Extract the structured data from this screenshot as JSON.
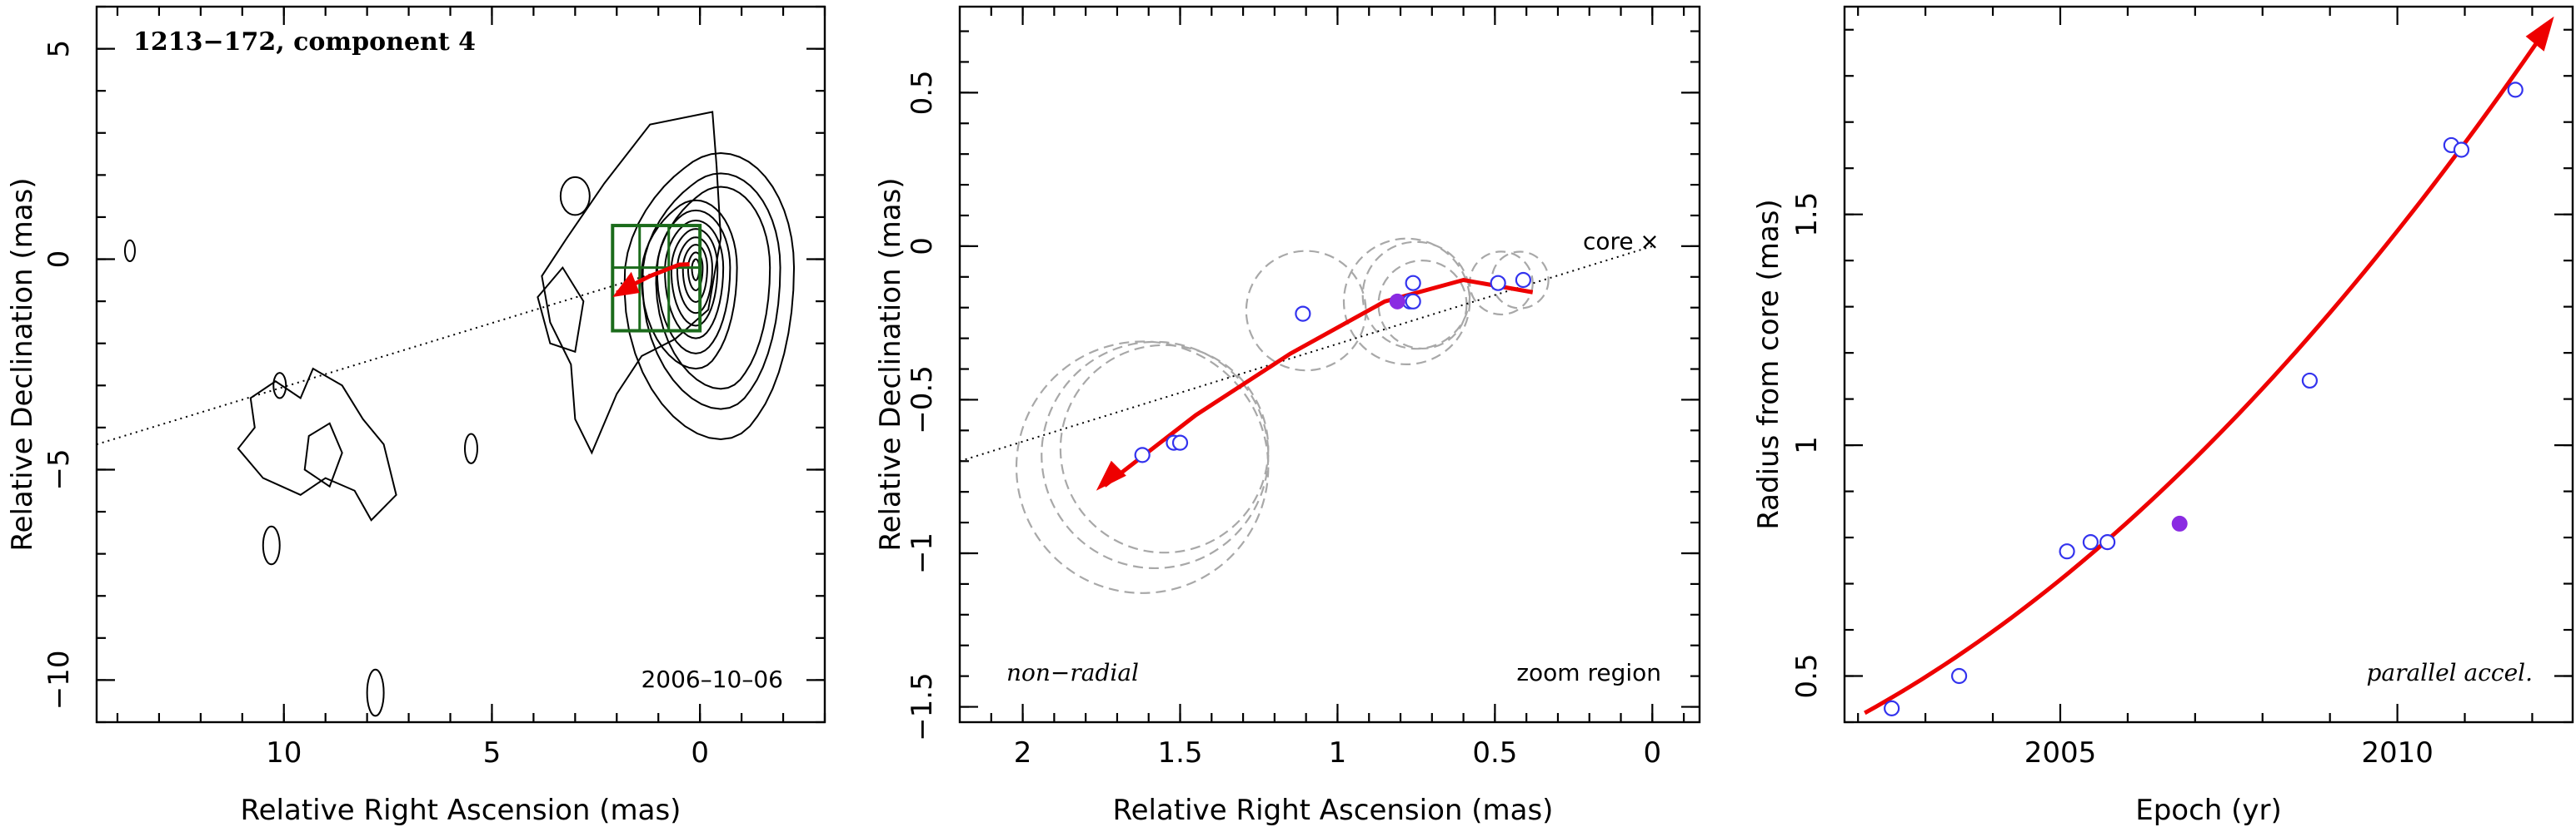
{
  "chart_data": [
    {
      "type": "contour",
      "title": "1213−172, component 4",
      "xlabel": "Relative Right Ascension (mas)",
      "ylabel": "Relative Declination (mas)",
      "xlim": [
        14.5,
        -3
      ],
      "ylim": [
        -11,
        6
      ],
      "xticks": [
        10,
        5,
        0
      ],
      "yticks": [
        5,
        0,
        -5,
        -10
      ],
      "annotation": "2006–10–06",
      "mean_direction_line": [
        [
          14.5,
          -4.4
        ],
        [
          0,
          0
        ]
      ],
      "zoom_box": {
        "ra": [
          2.1,
          0
        ],
        "dec": [
          -1.7,
          0.8
        ]
      },
      "motion_arrow": [
        [
          2,
          -0.8
        ],
        [
          1.2,
          -0.4
        ],
        [
          0.5,
          -0.13
        ],
        [
          0.25,
          -0.12
        ]
      ]
    },
    {
      "type": "scatter",
      "xlabel": "Relative Right Ascension (mas)",
      "ylabel": "Relative Declination (mas)",
      "xlim": [
        2.2,
        -0.15
      ],
      "ylim": [
        -1.55,
        0.78
      ],
      "xticks": [
        2,
        1.5,
        1,
        0.5,
        0
      ],
      "yticks": [
        0.5,
        0,
        -0.5,
        -1,
        -1.5
      ],
      "core_label": "core",
      "core_marker": "×",
      "left_note": "non−radial",
      "right_note": "zoom region",
      "open_points": [
        {
          "x": 1.62,
          "y": -0.68
        },
        {
          "x": 1.52,
          "y": -0.64
        },
        {
          "x": 1.5,
          "y": -0.64
        },
        {
          "x": 1.11,
          "y": -0.22
        },
        {
          "x": 0.76,
          "y": -0.12
        },
        {
          "x": 0.77,
          "y": -0.18
        },
        {
          "x": 0.76,
          "y": -0.18
        },
        {
          "x": 0.49,
          "y": -0.12
        },
        {
          "x": 0.41,
          "y": -0.11
        }
      ],
      "filled_points": [
        {
          "x": 0.81,
          "y": -0.18
        }
      ],
      "uncertainty_circles": [
        {
          "x": 1.62,
          "y": -0.72,
          "r": 0.4
        },
        {
          "x": 1.58,
          "y": -0.68,
          "r": 0.36
        },
        {
          "x": 1.55,
          "y": -0.66,
          "r": 0.33
        },
        {
          "x": 1.1,
          "y": -0.21,
          "r": 0.19
        },
        {
          "x": 0.78,
          "y": -0.18,
          "r": 0.2
        },
        {
          "x": 0.75,
          "y": -0.16,
          "r": 0.17
        },
        {
          "x": 0.73,
          "y": -0.19,
          "r": 0.14
        },
        {
          "x": 0.48,
          "y": -0.12,
          "r": 0.1
        },
        {
          "x": 0.42,
          "y": -0.11,
          "r": 0.09
        }
      ],
      "direction_line": [
        [
          2.2,
          -0.7
        ],
        [
          0,
          0
        ]
      ],
      "motion_track": [
        [
          1.74,
          -0.78
        ],
        [
          1.45,
          -0.55
        ],
        [
          1.15,
          -0.35
        ],
        [
          0.85,
          -0.18
        ],
        [
          0.6,
          -0.11
        ],
        [
          0.38,
          -0.15
        ]
      ]
    },
    {
      "type": "scatter",
      "xlabel": "Epoch (yr)",
      "ylabel": "Radius from core (mas)",
      "xlim": [
        2001.8,
        2012.6
      ],
      "ylim": [
        0.4,
        1.95
      ],
      "xticks": [
        2005,
        2010
      ],
      "yticks": [
        0.5,
        1,
        1.5
      ],
      "note": "parallel accel.",
      "open_points": [
        {
          "x": 2002.5,
          "y": 0.43
        },
        {
          "x": 2003.5,
          "y": 0.5
        },
        {
          "x": 2005.1,
          "y": 0.77
        },
        {
          "x": 2005.45,
          "y": 0.79
        },
        {
          "x": 2005.7,
          "y": 0.79
        },
        {
          "x": 2008.7,
          "y": 1.14
        },
        {
          "x": 2010.8,
          "y": 1.65
        },
        {
          "x": 2010.95,
          "y": 1.64
        },
        {
          "x": 2011.75,
          "y": 1.77
        }
      ],
      "filled_points": [
        {
          "x": 2006.77,
          "y": 0.83
        }
      ],
      "fit_curve": {
        "from": 2002.1,
        "to": 2012.2,
        "start_y": 0.42,
        "end_y": 1.9
      }
    }
  ],
  "colors": {
    "fit": "#ee0000",
    "points": "#3333ee",
    "filled": "#8a2be2",
    "box": "#1b6b1b",
    "circles": "#a8a8a8"
  }
}
